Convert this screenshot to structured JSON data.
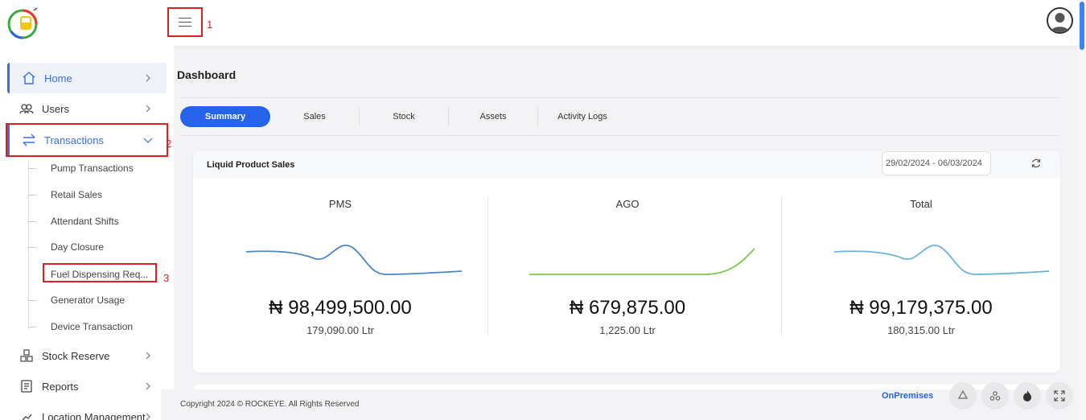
{
  "header": {
    "annotations": [
      "1",
      "2",
      "3"
    ]
  },
  "sidebar": {
    "items": [
      {
        "label": "Home"
      },
      {
        "label": "Users"
      },
      {
        "label": "Transactions"
      },
      {
        "label": "Stock Reserve"
      },
      {
        "label": "Reports"
      },
      {
        "label": "Location Management"
      }
    ],
    "transactions_sub": [
      "Pump Transactions",
      "Retail Sales",
      "Attendant Shifts",
      "Day Closure",
      "Fuel Dispensing Req...",
      "Generator Usage",
      "Device Transaction"
    ]
  },
  "main": {
    "title": "Dashboard",
    "tabs": [
      "Summary",
      "Sales",
      "Stock",
      "Assets",
      "Activity Logs"
    ],
    "card": {
      "title": "Liquid Product Sales",
      "date_range": "29/02/2024 - 06/03/2024",
      "columns": [
        {
          "label": "PMS",
          "amount": "₦ 98,499,500.00",
          "quantity": "179,090.00 Ltr",
          "color": "#4a86c8"
        },
        {
          "label": "AGO",
          "amount": "₦ 679,875.00",
          "quantity": "1,225.00 Ltr",
          "color": "#7cc84a"
        },
        {
          "label": "Total",
          "amount": "₦ 99,179,375.00",
          "quantity": "180,315.00 Ltr",
          "color": "#6ab4dc"
        }
      ]
    }
  },
  "footer": {
    "copyright": "Copyright 2024 © ROCKEYE. All Rights Reserved",
    "mode": "OnPremises"
  },
  "colors": {
    "accent": "#2563eb",
    "annotation": "#e02020"
  }
}
